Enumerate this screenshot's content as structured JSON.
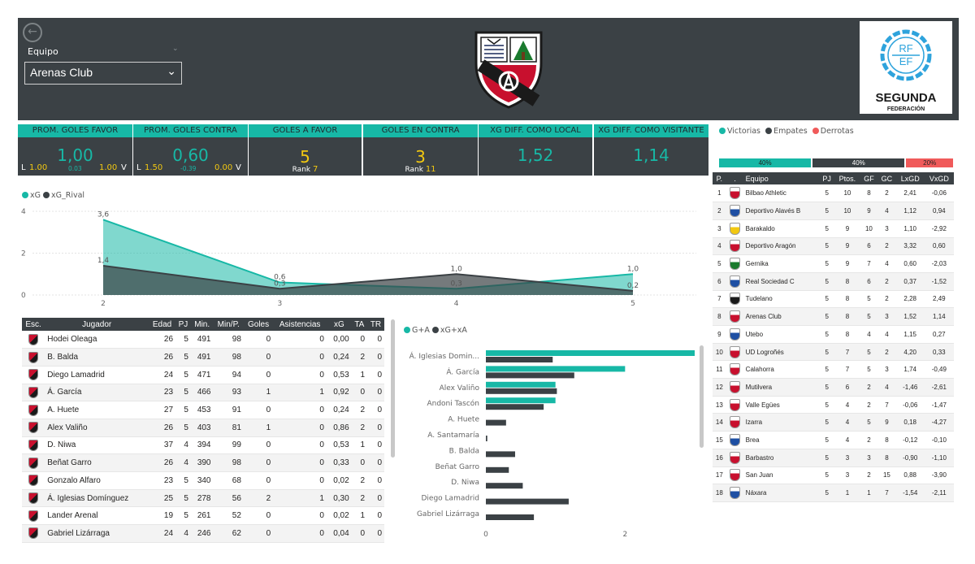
{
  "header": {
    "team_label": "Equipo",
    "team_selected": "Arenas Club",
    "league_logo_top": "RF",
    "league_logo_bottom": "EF",
    "league_name": "SEGUNDA",
    "league_sub": "FEDERACIÓN"
  },
  "kpis": {
    "goles_favor_prom": {
      "title": "PROM. GOLES FAVOR",
      "value": "1,00",
      "l_label": "L",
      "l_value": "1.00",
      "diff": "0.03",
      "v_value": "1.00",
      "v_label": "V"
    },
    "goles_contra_prom": {
      "title": "PROM. GOLES CONTRA",
      "value": "0,60",
      "l_label": "L",
      "l_value": "1.50",
      "diff": "-0.39",
      "v_value": "0.00",
      "v_label": "V"
    },
    "goles_a_favor": {
      "title": "GOLES A FAVOR",
      "value": "5",
      "rank_label": "Rank",
      "rank": "7"
    },
    "goles_en_contra": {
      "title": "GOLES EN CONTRA",
      "value": "3",
      "rank_label": "Rank",
      "rank": "11"
    },
    "xg_local": {
      "title": "XG DIFF. COMO LOCAL",
      "value": "1,52"
    },
    "xg_visitante": {
      "title": "XG DIFF. COMO VISITANTE",
      "value": "1,14"
    }
  },
  "results_legend": {
    "victorias": "Victorias",
    "empates": "Empates",
    "derrotas": "Derrotas",
    "colors": {
      "victorias": "#17b8a6",
      "empates": "#3b4145",
      "derrotas": "#f05a5a"
    },
    "victorias_pct": "40%",
    "empates_pct": "40%",
    "derrotas_pct": "20%",
    "victorias_frac": 0.4,
    "empates_frac": 0.4,
    "derrotas_frac": 0.2
  },
  "chart_data": [
    {
      "type": "area",
      "legend": [
        "xG",
        "xG_Rival"
      ],
      "x": [
        2,
        3,
        4,
        5
      ],
      "series": [
        {
          "name": "xG",
          "values": [
            3.6,
            0.6,
            0.3,
            1.0
          ],
          "labels": [
            "3,6",
            "0,6",
            "0,3",
            "1,0"
          ],
          "color": "#17b8a6"
        },
        {
          "name": "xG_Rival",
          "values": [
            1.4,
            0.3,
            1.0,
            0.2
          ],
          "labels": [
            "1,4",
            "0,3",
            "1,0",
            "0,2"
          ],
          "color": "#3b4145"
        }
      ],
      "yticks": [
        "0",
        "2",
        "4"
      ],
      "ylim": [
        0,
        4
      ],
      "xticks": [
        "2",
        "3",
        "4",
        "5"
      ]
    },
    {
      "type": "bar",
      "legend": [
        "G+A",
        "xG+xA"
      ],
      "categories": [
        "Á. Iglesias Domin...",
        "Á. García",
        "Alex Valiño",
        "Andoni Tascón",
        "A. Huete",
        "A. Santamaría",
        "B. Balda",
        "Beñat Garro",
        "D. Niwa",
        "Diego Lamadrid",
        "Gabriel Lizárraga"
      ],
      "series": [
        {
          "name": "G+A",
          "values": [
            3,
            2,
            1,
            1,
            0,
            0,
            0,
            0,
            0,
            0,
            0
          ],
          "color": "#17b8a6"
        },
        {
          "name": "xG+xA",
          "values": [
            0.96,
            1.27,
            1.02,
            0.83,
            0.29,
            0.02,
            0.42,
            0.33,
            0.53,
            1.19,
            0.69
          ],
          "color": "#3b4145"
        }
      ],
      "xticks": [
        "0",
        "2"
      ],
      "xlim": [
        0,
        3
      ]
    }
  ],
  "players": {
    "columns": [
      "Esc.",
      "Jugador",
      "Edad",
      "PJ",
      "Min.",
      "Min/P.",
      "Goles",
      "Asistencias",
      "xG",
      "TA",
      "TR"
    ],
    "rows": [
      [
        "Hodei Oleaga",
        "26",
        "5",
        "491",
        "98",
        "0",
        "0",
        "0,00",
        "0",
        "0"
      ],
      [
        "B. Balda",
        "26",
        "5",
        "491",
        "98",
        "0",
        "0",
        "0,24",
        "2",
        "0"
      ],
      [
        "Diego Lamadrid",
        "24",
        "5",
        "471",
        "94",
        "0",
        "0",
        "0,53",
        "1",
        "0"
      ],
      [
        "Á. García",
        "23",
        "5",
        "466",
        "93",
        "1",
        "1",
        "0,92",
        "0",
        "0"
      ],
      [
        "A. Huete",
        "27",
        "5",
        "453",
        "91",
        "0",
        "0",
        "0,24",
        "2",
        "0"
      ],
      [
        "Alex Valiño",
        "26",
        "5",
        "403",
        "81",
        "1",
        "0",
        "0,86",
        "2",
        "0"
      ],
      [
        "D. Niwa",
        "37",
        "4",
        "394",
        "99",
        "0",
        "0",
        "0,53",
        "1",
        "0"
      ],
      [
        "Beñat Garro",
        "26",
        "4",
        "390",
        "98",
        "0",
        "0",
        "0,33",
        "0",
        "0"
      ],
      [
        "Gonzalo Alfaro",
        "23",
        "5",
        "340",
        "68",
        "0",
        "0",
        "0,02",
        "2",
        "0"
      ],
      [
        "Á. Iglesias Domínguez",
        "25",
        "5",
        "278",
        "56",
        "2",
        "1",
        "0,30",
        "2",
        "0"
      ],
      [
        "Lander Arenal",
        "19",
        "5",
        "261",
        "52",
        "0",
        "0",
        "0,02",
        "1",
        "0"
      ],
      [
        "Gabriel Lizárraga",
        "24",
        "4",
        "246",
        "62",
        "0",
        "0",
        "0,04",
        "0",
        "0"
      ]
    ]
  },
  "standings": {
    "columns": [
      "P.",
      ".",
      "Equipo",
      "PJ",
      "Ptos.",
      "GF",
      "GC",
      "LxGD",
      "VxGD"
    ],
    "rows": [
      [
        "1",
        "Bilbao Athletic",
        "5",
        "10",
        "8",
        "2",
        "2,41",
        "-0,06"
      ],
      [
        "2",
        "Deportivo Alavés B",
        "5",
        "10",
        "9",
        "4",
        "1,12",
        "0,94"
      ],
      [
        "3",
        "Barakaldo",
        "5",
        "9",
        "10",
        "3",
        "1,10",
        "-2,92"
      ],
      [
        "4",
        "Deportivo Aragón",
        "5",
        "9",
        "6",
        "2",
        "3,32",
        "0,60"
      ],
      [
        "5",
        "Gernika",
        "5",
        "9",
        "7",
        "4",
        "0,60",
        "-2,03"
      ],
      [
        "6",
        "Real Sociedad C",
        "5",
        "8",
        "6",
        "2",
        "0,37",
        "-1,52"
      ],
      [
        "7",
        "Tudelano",
        "5",
        "8",
        "5",
        "2",
        "2,28",
        "2,49"
      ],
      [
        "8",
        "Arenas Club",
        "5",
        "8",
        "5",
        "3",
        "1,52",
        "1,14"
      ],
      [
        "9",
        "Utebo",
        "5",
        "8",
        "4",
        "4",
        "1,15",
        "0,27"
      ],
      [
        "10",
        "UD Logroñés",
        "5",
        "7",
        "5",
        "2",
        "4,20",
        "0,33"
      ],
      [
        "11",
        "Calahorra",
        "5",
        "7",
        "5",
        "3",
        "1,74",
        "-0,49"
      ],
      [
        "12",
        "Mutilvera",
        "5",
        "6",
        "2",
        "4",
        "-1,46",
        "-2,61"
      ],
      [
        "13",
        "Valle Egües",
        "5",
        "4",
        "2",
        "7",
        "-0,06",
        "-1,47"
      ],
      [
        "14",
        "Izarra",
        "5",
        "4",
        "5",
        "9",
        "0,18",
        "-4,27"
      ],
      [
        "15",
        "Brea",
        "5",
        "4",
        "2",
        "8",
        "-0,12",
        "-0,10"
      ],
      [
        "16",
        "Barbastro",
        "5",
        "3",
        "3",
        "8",
        "-0,90",
        "-1,10"
      ],
      [
        "17",
        "San Juan",
        "5",
        "3",
        "2",
        "15",
        "0,88",
        "-3,90"
      ],
      [
        "18",
        "Náxara",
        "5",
        "1",
        "1",
        "7",
        "-1,54",
        "-2,11"
      ]
    ],
    "crest_colors": [
      "#c8102e",
      "#1e4fa3",
      "#f2c811",
      "#c8102e",
      "#1a7a2e",
      "#1e4fa3",
      "#1a1a1a",
      "#c8102e",
      "#1e4fa3",
      "#c8102e",
      "#c8102e",
      "#c8102e",
      "#c8102e",
      "#c8102e",
      "#1e4fa3",
      "#c8102e",
      "#c8102e",
      "#1e4fa3"
    ]
  }
}
